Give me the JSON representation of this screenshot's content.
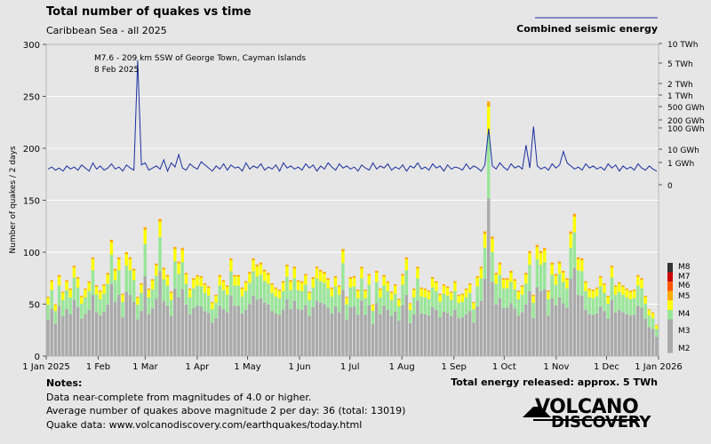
{
  "chart_data": {
    "type": "bar",
    "title": "Total number of quakes vs time",
    "subtitle": "Caribbean Sea - all 2025",
    "ylabel": "Number of quakes / 2 days",
    "ylim": [
      0,
      300
    ],
    "yticks": [
      0,
      50,
      100,
      150,
      200,
      250,
      300
    ],
    "xlim": [
      "2025-01-01",
      "2026-01-01"
    ],
    "xticks": [
      {
        "date": "2025-01-01",
        "label": "1 Jan 2025"
      },
      {
        "date": "2025-02-01",
        "label": "1 Feb"
      },
      {
        "date": "2025-03-01",
        "label": "1 Mar"
      },
      {
        "date": "2025-04-01",
        "label": "1 Apr"
      },
      {
        "date": "2025-05-01",
        "label": "1 May"
      },
      {
        "date": "2025-06-01",
        "label": "1 Jun"
      },
      {
        "date": "2025-07-01",
        "label": "1 Jul"
      },
      {
        "date": "2025-08-01",
        "label": "1 Aug"
      },
      {
        "date": "2025-09-01",
        "label": "1 Sep"
      },
      {
        "date": "2025-10-01",
        "label": "1 Oct"
      },
      {
        "date": "2025-11-01",
        "label": "1 Nov"
      },
      {
        "date": "2025-12-01",
        "label": "1 Dec"
      },
      {
        "date": "2026-01-01",
        "label": "1 Jan 2026"
      }
    ],
    "bar_period_days": 2,
    "totals": [
      57,
      73,
      50,
      78,
      62,
      73,
      65,
      87,
      76,
      58,
      65,
      72,
      95,
      68,
      63,
      69,
      80,
      112,
      84,
      95,
      60,
      100,
      95,
      84,
      57,
      70,
      124,
      65,
      74,
      89,
      132,
      85,
      78,
      62,
      105,
      91,
      104,
      80,
      65,
      75,
      78,
      77,
      70,
      67,
      52,
      59,
      78,
      73,
      68,
      94,
      78,
      78,
      66,
      72,
      81,
      94,
      88,
      90,
      83,
      80,
      70,
      66,
      64,
      72,
      88,
      73,
      86,
      73,
      72,
      79,
      62,
      76,
      86,
      83,
      81,
      75,
      66,
      77,
      68,
      103,
      57,
      76,
      77,
      64,
      86,
      64,
      79,
      50,
      82,
      65,
      78,
      72,
      62,
      69,
      55,
      79,
      95,
      51,
      65,
      86,
      66,
      65,
      63,
      76,
      72,
      60,
      69,
      67,
      62,
      72,
      59,
      60,
      65,
      70,
      52,
      77,
      86,
      120,
      245,
      115,
      80,
      90,
      75,
      75,
      82,
      74,
      63,
      68,
      80,
      101,
      59,
      107,
      101,
      104,
      63,
      90,
      79,
      91,
      82,
      75,
      120,
      137,
      95,
      94,
      72,
      65,
      64,
      66,
      77,
      70,
      58,
      87,
      68,
      71,
      68,
      65,
      63,
      64,
      78,
      75,
      58,
      45,
      42,
      30
    ],
    "magnitude_mix": {
      "M2": 0.62,
      "M3": 0.25,
      "M4": 0.11,
      "M5": 0.02
    },
    "magnitude_legend": [
      "M8",
      "M7",
      "M6",
      "M5",
      "M4",
      "M3",
      "M2"
    ],
    "magnitude_colors": {
      "M2": "#aaaaaa",
      "M3": "#99e699",
      "M4": "#ffff00",
      "M5": "#ffaa00",
      "M6": "#ff5500",
      "M7": "#cc0000",
      "M8": "#333333"
    },
    "energy_series": {
      "name": "Combined seismic energy",
      "color": "#1a2ea0",
      "right_axis_ticks": [
        "0",
        "1 GWh",
        "10 GWh",
        "100 GWh",
        "200 GWh",
        "500 GWh",
        "1 TWh",
        "2 TWh",
        "5 TWh",
        "10 TWh"
      ],
      "values_scaled": [
        180,
        182,
        179,
        181,
        178,
        183,
        180,
        182,
        179,
        184,
        181,
        178,
        186,
        180,
        183,
        179,
        181,
        185,
        180,
        182,
        178,
        184,
        181,
        179,
        285,
        184,
        186,
        179,
        181,
        183,
        180,
        189,
        178,
        186,
        182,
        194,
        181,
        179,
        185,
        182,
        180,
        187,
        184,
        181,
        178,
        183,
        180,
        185,
        179,
        184,
        181,
        182,
        178,
        186,
        180,
        183,
        181,
        185,
        179,
        182,
        180,
        184,
        178,
        186,
        181,
        183,
        180,
        182,
        179,
        185,
        181,
        184,
        178,
        183,
        180,
        186,
        182,
        179,
        185,
        181,
        183,
        180,
        182,
        178,
        184,
        181,
        179,
        186,
        180,
        183,
        181,
        185,
        179,
        182,
        180,
        184,
        178,
        183,
        181,
        186,
        180,
        182,
        179,
        185,
        181,
        183,
        178,
        184,
        180,
        182,
        181,
        179,
        185,
        180,
        183,
        181,
        178,
        184,
        219,
        183,
        180,
        186,
        182,
        179,
        185,
        181,
        183,
        180,
        203,
        181,
        221,
        183,
        180,
        182,
        179,
        185,
        181,
        184,
        197,
        186,
        183,
        180,
        182,
        179,
        185,
        181,
        183,
        180,
        182,
        179,
        185,
        181,
        184,
        178,
        183,
        180,
        182,
        179,
        185,
        181,
        179,
        183,
        180,
        178
      ]
    },
    "annotation": {
      "line1": "M7.6 - 209 km SSW of George Town, Cayman Islands",
      "line2": "8 Feb 2025"
    }
  },
  "notes": {
    "heading": "Notes:",
    "line1": "Data near-complete from magnitudes of 4.0 or higher.",
    "line2": "Average number of quakes above magnitude 2 per day: 36 (total: 13019)",
    "line3": "Quake data: www.volcanodiscovery.com/earthquakes/today.html"
  },
  "energy_total": "Total energy released: approx. 5 TWh",
  "logo": {
    "line1": "VOLCANO",
    "line2": "DISCOVERY"
  }
}
